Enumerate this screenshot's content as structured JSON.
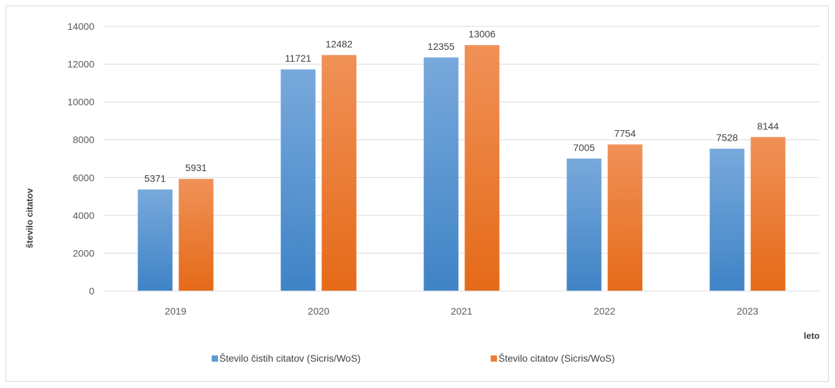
{
  "chart_data": {
    "type": "bar",
    "categories": [
      "2019",
      "2020",
      "2021",
      "2022",
      "2023"
    ],
    "series": [
      {
        "name": "Število čistih citatov (Sicris/WoS)",
        "values": [
          5371,
          11721,
          12355,
          7005,
          7528
        ],
        "color": "#5b9bd5"
      },
      {
        "name": "Število citatov (Sicris/WoS)",
        "values": [
          5931,
          12482,
          13006,
          7754,
          8144
        ],
        "color": "#ed7d31"
      }
    ],
    "title": "",
    "xlabel": "leto",
    "ylabel": "število citatov",
    "ylim": [
      0,
      14000
    ],
    "yticks": [
      0,
      2000,
      4000,
      6000,
      8000,
      10000,
      12000,
      14000
    ],
    "grid": true,
    "legend": "bottom"
  }
}
